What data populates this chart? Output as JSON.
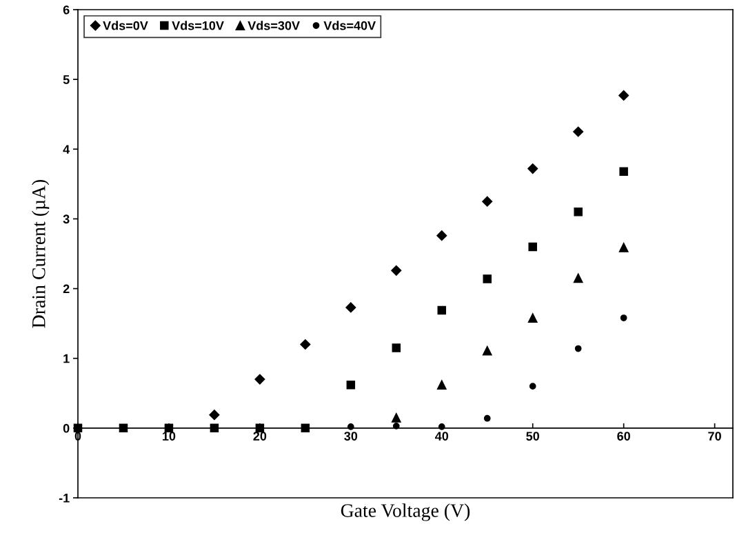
{
  "chart_data": {
    "type": "scatter",
    "xlabel": "Gate Voltage (V)",
    "ylabel": "Drain Current (µA)",
    "x": [
      0,
      5,
      10,
      15,
      20,
      25,
      30,
      35,
      40,
      45,
      50,
      55,
      60
    ],
    "series": [
      {
        "name": "Vds=0V",
        "color": "#000000",
        "marker": "diamond",
        "values": [
          null,
          null,
          null,
          0.19,
          0.7,
          1.2,
          1.73,
          2.26,
          2.76,
          3.25,
          3.72,
          4.25,
          4.77
        ]
      },
      {
        "name": "Vds=10V",
        "color": "#000000",
        "marker": "square",
        "values": [
          0,
          0,
          0,
          0,
          0,
          0,
          0.62,
          1.15,
          1.69,
          2.14,
          2.6,
          3.1,
          3.68
        ]
      },
      {
        "name": "Vds=30V",
        "color": "#000000",
        "marker": "triangle",
        "values": [
          null,
          null,
          null,
          null,
          null,
          null,
          null,
          0.15,
          0.62,
          1.11,
          1.58,
          2.15,
          2.59
        ]
      },
      {
        "name": "Vds=40V",
        "color": "#000000",
        "marker": "circle",
        "values": [
          null,
          null,
          null,
          null,
          null,
          null,
          0.02,
          0.03,
          0.02,
          0.14,
          0.6,
          1.14,
          1.58
        ]
      }
    ],
    "xlim": [
      0,
      72
    ],
    "xticks": [
      0,
      10,
      20,
      30,
      40,
      50,
      60,
      70
    ],
    "ylim": [
      -1,
      6
    ],
    "yticks": [
      -1,
      0,
      1,
      2,
      3,
      4,
      5,
      6
    ],
    "grid": false,
    "legend": "top left"
  }
}
